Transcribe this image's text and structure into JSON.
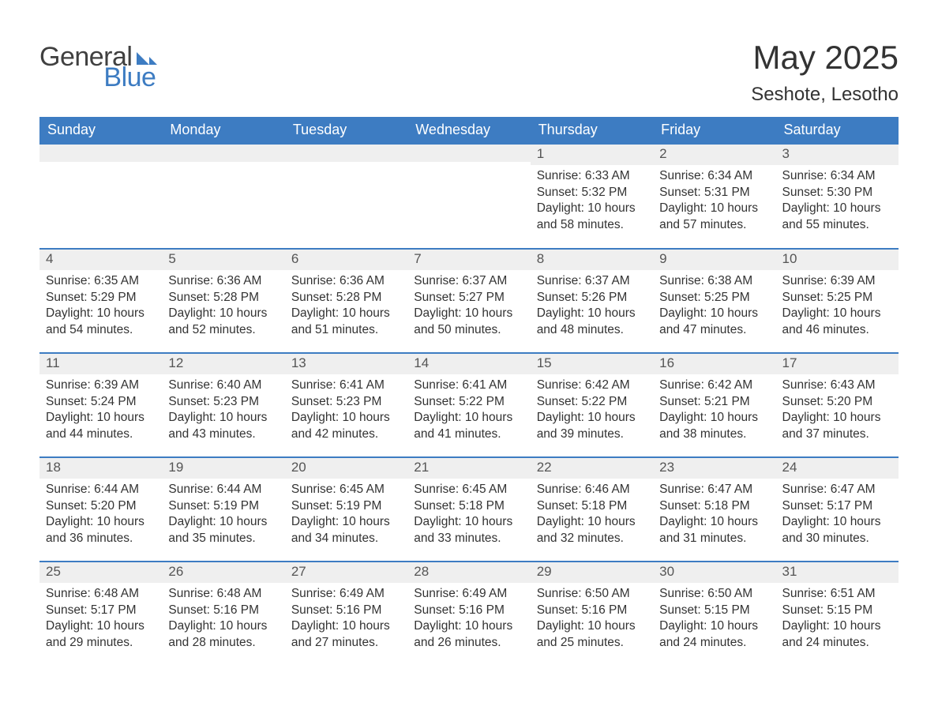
{
  "brand": {
    "line1": "General",
    "line2": "Blue",
    "mark_color": "#3d7cc2"
  },
  "header": {
    "month_title": "May 2025",
    "location": "Seshote, Lesotho"
  },
  "colors": {
    "header_row_bg": "#3d7cc2",
    "daynum_bg": "#efefef",
    "border_blue": "#3d7cc2",
    "page_bg": "#ffffff",
    "text_dark": "#333333",
    "text_light": "#ffffff"
  },
  "calendar": {
    "day_headers": [
      "Sunday",
      "Monday",
      "Tuesday",
      "Wednesday",
      "Thursday",
      "Friday",
      "Saturday"
    ],
    "label_sunrise": "Sunrise:",
    "label_sunset": "Sunset:",
    "label_daylight": "Daylight:",
    "weeks": [
      [
        {
          "empty": true
        },
        {
          "empty": true
        },
        {
          "empty": true
        },
        {
          "empty": true
        },
        {
          "day": "1",
          "sunrise": "6:33 AM",
          "sunset": "5:32 PM",
          "daylight": "10 hours and 58 minutes."
        },
        {
          "day": "2",
          "sunrise": "6:34 AM",
          "sunset": "5:31 PM",
          "daylight": "10 hours and 57 minutes."
        },
        {
          "day": "3",
          "sunrise": "6:34 AM",
          "sunset": "5:30 PM",
          "daylight": "10 hours and 55 minutes."
        }
      ],
      [
        {
          "day": "4",
          "sunrise": "6:35 AM",
          "sunset": "5:29 PM",
          "daylight": "10 hours and 54 minutes."
        },
        {
          "day": "5",
          "sunrise": "6:36 AM",
          "sunset": "5:28 PM",
          "daylight": "10 hours and 52 minutes."
        },
        {
          "day": "6",
          "sunrise": "6:36 AM",
          "sunset": "5:28 PM",
          "daylight": "10 hours and 51 minutes."
        },
        {
          "day": "7",
          "sunrise": "6:37 AM",
          "sunset": "5:27 PM",
          "daylight": "10 hours and 50 minutes."
        },
        {
          "day": "8",
          "sunrise": "6:37 AM",
          "sunset": "5:26 PM",
          "daylight": "10 hours and 48 minutes."
        },
        {
          "day": "9",
          "sunrise": "6:38 AM",
          "sunset": "5:25 PM",
          "daylight": "10 hours and 47 minutes."
        },
        {
          "day": "10",
          "sunrise": "6:39 AM",
          "sunset": "5:25 PM",
          "daylight": "10 hours and 46 minutes."
        }
      ],
      [
        {
          "day": "11",
          "sunrise": "6:39 AM",
          "sunset": "5:24 PM",
          "daylight": "10 hours and 44 minutes."
        },
        {
          "day": "12",
          "sunrise": "6:40 AM",
          "sunset": "5:23 PM",
          "daylight": "10 hours and 43 minutes."
        },
        {
          "day": "13",
          "sunrise": "6:41 AM",
          "sunset": "5:23 PM",
          "daylight": "10 hours and 42 minutes."
        },
        {
          "day": "14",
          "sunrise": "6:41 AM",
          "sunset": "5:22 PM",
          "daylight": "10 hours and 41 minutes."
        },
        {
          "day": "15",
          "sunrise": "6:42 AM",
          "sunset": "5:22 PM",
          "daylight": "10 hours and 39 minutes."
        },
        {
          "day": "16",
          "sunrise": "6:42 AM",
          "sunset": "5:21 PM",
          "daylight": "10 hours and 38 minutes."
        },
        {
          "day": "17",
          "sunrise": "6:43 AM",
          "sunset": "5:20 PM",
          "daylight": "10 hours and 37 minutes."
        }
      ],
      [
        {
          "day": "18",
          "sunrise": "6:44 AM",
          "sunset": "5:20 PM",
          "daylight": "10 hours and 36 minutes."
        },
        {
          "day": "19",
          "sunrise": "6:44 AM",
          "sunset": "5:19 PM",
          "daylight": "10 hours and 35 minutes."
        },
        {
          "day": "20",
          "sunrise": "6:45 AM",
          "sunset": "5:19 PM",
          "daylight": "10 hours and 34 minutes."
        },
        {
          "day": "21",
          "sunrise": "6:45 AM",
          "sunset": "5:18 PM",
          "daylight": "10 hours and 33 minutes."
        },
        {
          "day": "22",
          "sunrise": "6:46 AM",
          "sunset": "5:18 PM",
          "daylight": "10 hours and 32 minutes."
        },
        {
          "day": "23",
          "sunrise": "6:47 AM",
          "sunset": "5:18 PM",
          "daylight": "10 hours and 31 minutes."
        },
        {
          "day": "24",
          "sunrise": "6:47 AM",
          "sunset": "5:17 PM",
          "daylight": "10 hours and 30 minutes."
        }
      ],
      [
        {
          "day": "25",
          "sunrise": "6:48 AM",
          "sunset": "5:17 PM",
          "daylight": "10 hours and 29 minutes."
        },
        {
          "day": "26",
          "sunrise": "6:48 AM",
          "sunset": "5:16 PM",
          "daylight": "10 hours and 28 minutes."
        },
        {
          "day": "27",
          "sunrise": "6:49 AM",
          "sunset": "5:16 PM",
          "daylight": "10 hours and 27 minutes."
        },
        {
          "day": "28",
          "sunrise": "6:49 AM",
          "sunset": "5:16 PM",
          "daylight": "10 hours and 26 minutes."
        },
        {
          "day": "29",
          "sunrise": "6:50 AM",
          "sunset": "5:16 PM",
          "daylight": "10 hours and 25 minutes."
        },
        {
          "day": "30",
          "sunrise": "6:50 AM",
          "sunset": "5:15 PM",
          "daylight": "10 hours and 24 minutes."
        },
        {
          "day": "31",
          "sunrise": "6:51 AM",
          "sunset": "5:15 PM",
          "daylight": "10 hours and 24 minutes."
        }
      ]
    ]
  }
}
